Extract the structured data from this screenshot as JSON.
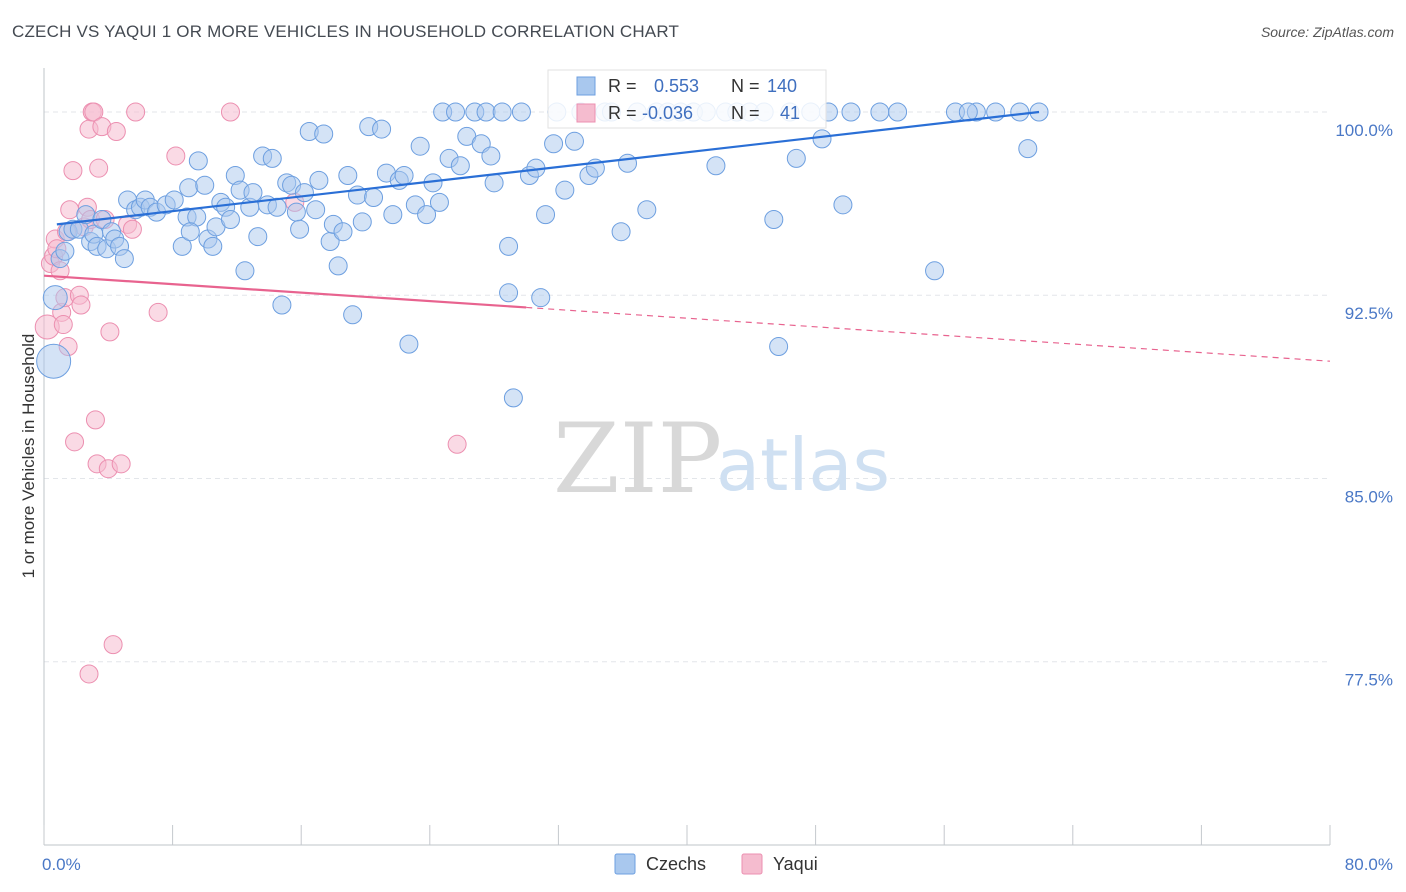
{
  "title": "CZECH VS YAQUI 1 OR MORE VEHICLES IN HOUSEHOLD CORRELATION CHART",
  "source": "Source: ZipAtlas.com",
  "watermark": {
    "zip": "ZIP",
    "atlas": "atlas"
  },
  "colors": {
    "czech_fill": "#a9c8ee",
    "czech_stroke": "#6d9fe0",
    "czech_line": "#2a6fd6",
    "yaqui_fill": "#f5bccf",
    "yaqui_stroke": "#ec8fb0",
    "yaqui_line": "#e8638f",
    "tick_text": "#4a78c6",
    "grid": "#e3e6ea"
  },
  "stats": {
    "czech": {
      "r_label": "R =",
      "r_value": "0.553",
      "n_label": "N =",
      "n_value": "140"
    },
    "yaqui": {
      "r_label": "R =",
      "r_value": "-0.036",
      "n_label": "N =",
      "n_value": "41"
    }
  },
  "chart_data": {
    "type": "scatter",
    "title": "CZECH VS YAQUI 1 OR MORE VEHICLES IN HOUSEHOLD CORRELATION CHART",
    "xlabel": "",
    "ylabel": "1 or more Vehicles in Household",
    "xlim": [
      0,
      80
    ],
    "ylim": [
      70.0,
      101.8
    ],
    "x_tick_labels": [
      "0.0%",
      "80.0%"
    ],
    "y_ticks": [
      77.5,
      85.0,
      92.5,
      100.0
    ],
    "y_tick_labels": [
      "77.5%",
      "85.0%",
      "92.5%",
      "100.0%"
    ],
    "grid": true,
    "legend": {
      "placement": "bottom-center",
      "entries": [
        "Czechs",
        "Yaqui"
      ]
    },
    "series": [
      {
        "name": "Czechs",
        "trend": {
          "x": [
            0.8,
            61.9
          ],
          "y": [
            95.4,
            100.0
          ]
        },
        "points": [
          [
            0.6,
            89.8,
            3
          ],
          [
            0.7,
            92.4,
            2
          ],
          [
            1.0,
            94.0,
            1
          ],
          [
            1.3,
            94.3,
            1
          ],
          [
            1.5,
            95.1,
            1
          ],
          [
            1.8,
            95.2,
            1
          ],
          [
            2.2,
            95.2,
            1
          ],
          [
            2.6,
            95.8,
            1
          ],
          [
            2.9,
            94.7,
            1
          ],
          [
            3.1,
            95.0,
            1
          ],
          [
            3.3,
            94.5,
            1
          ],
          [
            3.6,
            95.6,
            1
          ],
          [
            3.9,
            94.4,
            1
          ],
          [
            4.2,
            95.1,
            1
          ],
          [
            4.4,
            94.8,
            1
          ],
          [
            4.7,
            94.5,
            1
          ],
          [
            5.0,
            94.0,
            1
          ],
          [
            5.2,
            96.4,
            1
          ],
          [
            5.7,
            96.0,
            1
          ],
          [
            6.0,
            96.1,
            1
          ],
          [
            6.3,
            96.4,
            1
          ],
          [
            6.6,
            96.1,
            1
          ],
          [
            7.0,
            95.9,
            1
          ],
          [
            7.6,
            96.2,
            1
          ],
          [
            8.1,
            96.4,
            1
          ],
          [
            8.6,
            94.5,
            1
          ],
          [
            8.9,
            95.7,
            1
          ],
          [
            9.0,
            96.9,
            1
          ],
          [
            9.5,
            95.7,
            1
          ],
          [
            9.1,
            95.1,
            1
          ],
          [
            9.6,
            98.0,
            1
          ],
          [
            10.0,
            97.0,
            1
          ],
          [
            10.2,
            94.8,
            1
          ],
          [
            10.5,
            94.5,
            1
          ],
          [
            10.7,
            95.3,
            1
          ],
          [
            11.0,
            96.3,
            1
          ],
          [
            11.3,
            96.1,
            1
          ],
          [
            11.6,
            95.6,
            1
          ],
          [
            11.9,
            97.4,
            1
          ],
          [
            12.2,
            96.8,
            1
          ],
          [
            12.5,
            93.5,
            1
          ],
          [
            12.8,
            96.1,
            1
          ],
          [
            13.0,
            96.7,
            1
          ],
          [
            13.3,
            94.9,
            1
          ],
          [
            13.6,
            98.2,
            1
          ],
          [
            13.9,
            96.2,
            1
          ],
          [
            14.2,
            98.1,
            1
          ],
          [
            14.5,
            96.1,
            1
          ],
          [
            14.8,
            92.1,
            1
          ],
          [
            15.1,
            97.1,
            1
          ],
          [
            15.4,
            97.0,
            1
          ],
          [
            15.7,
            95.9,
            1
          ],
          [
            15.9,
            95.2,
            1
          ],
          [
            16.2,
            96.7,
            1
          ],
          [
            16.5,
            99.2,
            1
          ],
          [
            16.9,
            96.0,
            1
          ],
          [
            17.1,
            97.2,
            1
          ],
          [
            17.4,
            99.1,
            1
          ],
          [
            17.8,
            94.7,
            1
          ],
          [
            18.0,
            95.4,
            1
          ],
          [
            18.3,
            93.7,
            1
          ],
          [
            18.6,
            95.1,
            1
          ],
          [
            18.9,
            97.4,
            1
          ],
          [
            19.2,
            91.7,
            1
          ],
          [
            19.5,
            96.6,
            1
          ],
          [
            19.8,
            95.5,
            1
          ],
          [
            20.2,
            99.4,
            1
          ],
          [
            20.5,
            96.5,
            1
          ],
          [
            21.0,
            99.3,
            1
          ],
          [
            21.3,
            97.5,
            1
          ],
          [
            21.7,
            95.8,
            1
          ],
          [
            22.1,
            97.2,
            1
          ],
          [
            22.4,
            97.4,
            1
          ],
          [
            22.7,
            90.5,
            1
          ],
          [
            23.1,
            96.2,
            1
          ],
          [
            23.4,
            98.6,
            1
          ],
          [
            23.8,
            95.8,
            1
          ],
          [
            24.2,
            97.1,
            1
          ],
          [
            24.6,
            96.3,
            1
          ],
          [
            24.8,
            100.0,
            1
          ],
          [
            25.2,
            98.1,
            1
          ],
          [
            25.6,
            100.0,
            1
          ],
          [
            25.9,
            97.8,
            1
          ],
          [
            26.3,
            99.0,
            1
          ],
          [
            26.8,
            100.0,
            1
          ],
          [
            27.2,
            98.7,
            1
          ],
          [
            27.5,
            100.0,
            1
          ],
          [
            27.8,
            98.2,
            1
          ],
          [
            28.0,
            97.1,
            1
          ],
          [
            28.5,
            100.0,
            1
          ],
          [
            28.9,
            94.5,
            1
          ],
          [
            28.9,
            92.6,
            1
          ],
          [
            29.2,
            88.3,
            1
          ],
          [
            29.7,
            100.0,
            1
          ],
          [
            30.2,
            97.4,
            1
          ],
          [
            30.6,
            97.7,
            1
          ],
          [
            30.9,
            92.4,
            1
          ],
          [
            31.2,
            95.8,
            1
          ],
          [
            31.7,
            98.7,
            1
          ],
          [
            31.9,
            100.0,
            1
          ],
          [
            32.4,
            96.8,
            1
          ],
          [
            33.0,
            98.8,
            1
          ],
          [
            33.4,
            100.0,
            1
          ],
          [
            33.9,
            97.4,
            1
          ],
          [
            34.3,
            97.7,
            1
          ],
          [
            34.9,
            100.0,
            1
          ],
          [
            35.3,
            100.0,
            1
          ],
          [
            35.9,
            95.1,
            1
          ],
          [
            36.3,
            97.9,
            1
          ],
          [
            36.9,
            100.0,
            1
          ],
          [
            37.5,
            96.0,
            1
          ],
          [
            38.1,
            100.0,
            1
          ],
          [
            38.8,
            100.0,
            1
          ],
          [
            39.6,
            100.0,
            1
          ],
          [
            40.4,
            100.0,
            1
          ],
          [
            41.2,
            100.0,
            1
          ],
          [
            41.8,
            97.8,
            1
          ],
          [
            42.4,
            100.0,
            1
          ],
          [
            43.1,
            100.0,
            1
          ],
          [
            43.9,
            100.0,
            1
          ],
          [
            44.8,
            100.0,
            1
          ],
          [
            45.4,
            95.6,
            1
          ],
          [
            45.7,
            90.4,
            1
          ],
          [
            46.4,
            100.0,
            1
          ],
          [
            46.8,
            98.1,
            1
          ],
          [
            47.7,
            100.0,
            1
          ],
          [
            48.4,
            98.9,
            1
          ],
          [
            48.8,
            100.0,
            1
          ],
          [
            49.7,
            96.2,
            1
          ],
          [
            50.2,
            100.0,
            1
          ],
          [
            52.0,
            100.0,
            1
          ],
          [
            53.1,
            100.0,
            1
          ],
          [
            55.4,
            93.5,
            1
          ],
          [
            56.7,
            100.0,
            1
          ],
          [
            58.0,
            100.0,
            1
          ],
          [
            59.2,
            100.0,
            1
          ],
          [
            60.7,
            100.0,
            1
          ],
          [
            61.2,
            98.5,
            1
          ],
          [
            61.9,
            100.0,
            1
          ],
          [
            57.5,
            100.0,
            1
          ]
        ]
      },
      {
        "name": "Yaqui",
        "trend": {
          "x": [
            0.0,
            30.0
          ],
          "y": [
            93.3,
            92.0
          ]
        },
        "trend_dashed": {
          "x": [
            30.0,
            80.0
          ],
          "y": [
            92.0,
            89.8
          ]
        },
        "points": [
          [
            0.2,
            91.2,
            2
          ],
          [
            0.4,
            93.8,
            1
          ],
          [
            0.6,
            94.1,
            1
          ],
          [
            0.7,
            94.8,
            1
          ],
          [
            0.8,
            94.4,
            1
          ],
          [
            1.0,
            93.5,
            1
          ],
          [
            1.1,
            91.8,
            1
          ],
          [
            1.2,
            91.3,
            1
          ],
          [
            1.3,
            92.4,
            1
          ],
          [
            1.4,
            95.1,
            1
          ],
          [
            1.5,
            90.4,
            1
          ],
          [
            1.6,
            96.0,
            1
          ],
          [
            1.8,
            97.6,
            1
          ],
          [
            1.9,
            86.5,
            1
          ],
          [
            2.2,
            92.5,
            1
          ],
          [
            2.3,
            92.1,
            1
          ],
          [
            2.5,
            95.3,
            1
          ],
          [
            2.7,
            96.1,
            1
          ],
          [
            2.8,
            99.3,
            1
          ],
          [
            2.9,
            95.6,
            1
          ],
          [
            3.0,
            100.0,
            1
          ],
          [
            3.1,
            100.0,
            1
          ],
          [
            3.2,
            87.4,
            1
          ],
          [
            3.3,
            85.6,
            1
          ],
          [
            3.4,
            97.7,
            1
          ],
          [
            3.6,
            99.4,
            1
          ],
          [
            3.8,
            95.6,
            1
          ],
          [
            4.0,
            85.4,
            1
          ],
          [
            4.1,
            91.0,
            1
          ],
          [
            4.3,
            78.2,
            1
          ],
          [
            4.5,
            99.2,
            1
          ],
          [
            4.8,
            85.6,
            1
          ],
          [
            5.2,
            95.4,
            1
          ],
          [
            5.5,
            95.2,
            1
          ],
          [
            5.7,
            100.0,
            1
          ],
          [
            7.1,
            91.8,
            1
          ],
          [
            8.2,
            98.2,
            1
          ],
          [
            11.6,
            100.0,
            1
          ],
          [
            15.6,
            96.3,
            1
          ],
          [
            2.8,
            77.0,
            1
          ],
          [
            25.7,
            86.4,
            1
          ]
        ]
      }
    ]
  }
}
